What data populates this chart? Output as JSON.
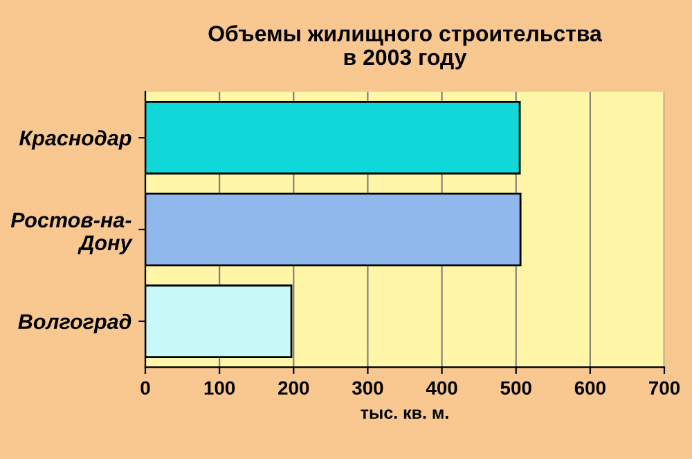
{
  "chart_data": {
    "type": "bar",
    "orientation": "horizontal",
    "title": "Объемы жилищного строительства\nв 2003 году",
    "xlabel": "тыс. кв. м.",
    "categories": [
      "Краснодар",
      "Ростов-на-\nДону",
      "Волгоград"
    ],
    "values": [
      505,
      506,
      197
    ],
    "colors": [
      "#10d8d8",
      "#90b8ec",
      "#c8f8f8"
    ],
    "xlim": [
      0,
      700
    ],
    "xticks": [
      0,
      100,
      200,
      300,
      400,
      500,
      600,
      700
    ],
    "grid": "x"
  }
}
